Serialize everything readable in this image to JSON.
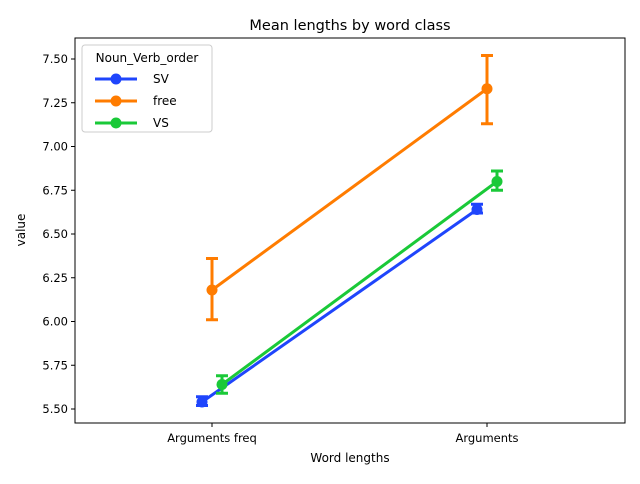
{
  "chart_data": {
    "type": "line",
    "title": "Mean lengths by word class",
    "xlabel": "Word lengths",
    "ylabel": "value",
    "categories": [
      "Arguments freq",
      "Arguments"
    ],
    "ylim": [
      5.42,
      7.62
    ],
    "yticks": [
      "5.50",
      "5.75",
      "6.00",
      "6.25",
      "6.50",
      "6.75",
      "7.00",
      "7.25",
      "7.50"
    ],
    "grid": false,
    "legend": {
      "title": "Noun_Verb_order",
      "placement": "top-left"
    },
    "series": [
      {
        "name": "SV",
        "color": "#1f45fc",
        "values": [
          5.54,
          6.64
        ],
        "err_low": [
          5.52,
          6.62
        ],
        "err_high": [
          5.57,
          6.67
        ]
      },
      {
        "name": "free",
        "color": "#ff7c00",
        "values": [
          6.18,
          7.33
        ],
        "err_low": [
          6.01,
          7.13
        ],
        "err_high": [
          6.36,
          7.52
        ]
      },
      {
        "name": "VS",
        "color": "#1ac938",
        "values": [
          5.64,
          6.8
        ],
        "err_low": [
          5.59,
          6.75
        ],
        "err_high": [
          5.69,
          6.86
        ]
      }
    ]
  }
}
